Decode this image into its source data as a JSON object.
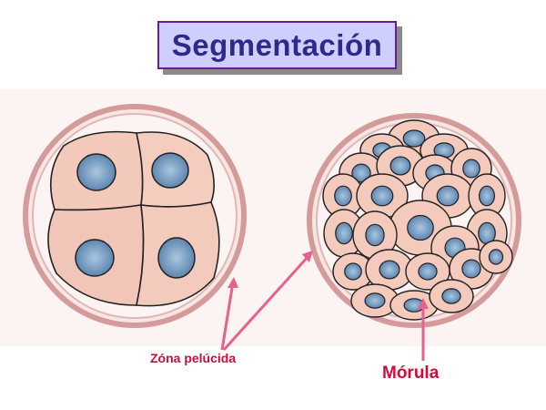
{
  "slide": {
    "title": "Segmentación"
  },
  "labels": {
    "zona_pelucida": "Zóna pelúcida",
    "morula": "Mórula"
  },
  "colors": {
    "title_text": "#2e2a8c",
    "title_bg": "#cfcfff",
    "title_border": "#6a1b9a",
    "label": "#d10a3a",
    "arrow": "#e8608e",
    "zona_ring": "#d9a0a0",
    "cell_fill": "#f4cfc2",
    "nucleus": "#7fa6c8"
  }
}
